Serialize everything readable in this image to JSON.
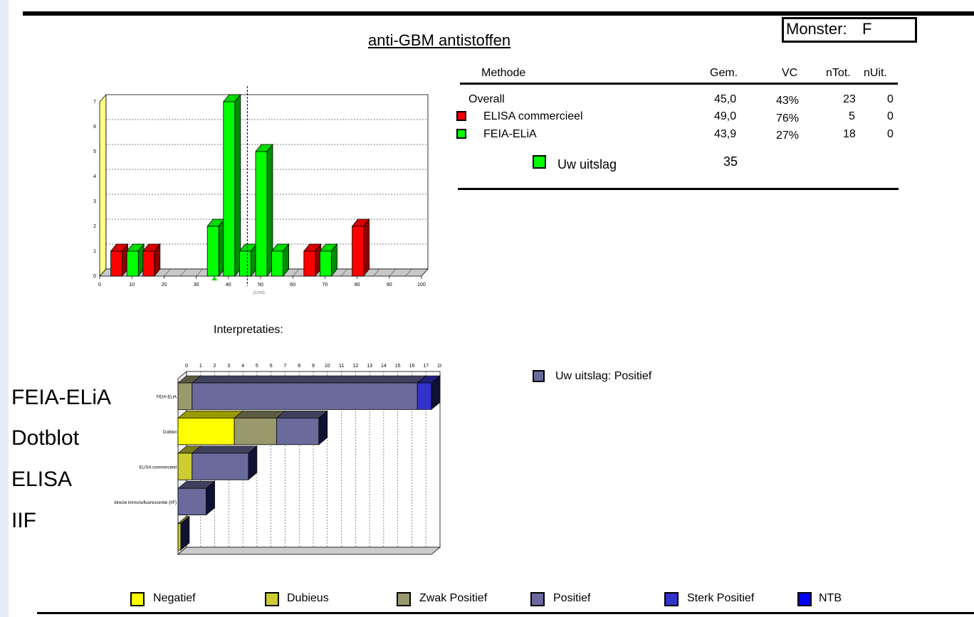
{
  "header": {
    "title": "anti-GBM antistoffen",
    "monster_label": "Monster:",
    "monster_value": "F"
  },
  "stats_table": {
    "columns": [
      "Methode",
      "Gem.",
      "VC",
      "nTot.",
      "nUit."
    ],
    "rows": [
      {
        "name": "Overall",
        "gem": "45,0",
        "vc": "43%",
        "ntot": "23",
        "nuit": "0",
        "color": ""
      },
      {
        "name": "ELISA commercieel",
        "gem": "49,0",
        "vc": "76%",
        "ntot": "5",
        "nuit": "0",
        "color": "#ff0000"
      },
      {
        "name": "FEIA-ELiA",
        "gem": "43,9",
        "vc": "27%",
        "ntot": "18",
        "nuit": "0",
        "color": "#00ff00"
      }
    ],
    "result_label": "Uw uitslag",
    "result_value": "35",
    "result_color": "#00ff00"
  },
  "interpretation": {
    "title": "Interpretaties:",
    "result_label": "Uw uitslag:  Positief",
    "result_color": "#6a6a9c"
  },
  "side_labels": [
    "FEIA-ELiA",
    "Dotblot",
    "ELISA",
    "IIF"
  ],
  "legend": [
    {
      "label": "Negatief",
      "color": "#ffff00"
    },
    {
      "label": "Dubieus",
      "color": "#cccc33"
    },
    {
      "label": "Zwak Positief",
      "color": "#99996e"
    },
    {
      "label": "Positief",
      "color": "#6a6a9c"
    },
    {
      "label": "Sterk Positief",
      "color": "#3333cc"
    },
    {
      "label": "NTB",
      "color": "#0000ff"
    }
  ],
  "chart_data": [
    {
      "type": "bar",
      "xlabel": "(U/ml)",
      "ylabel": "",
      "xlim": [
        0,
        100
      ],
      "ylim": [
        0,
        7
      ],
      "x_ticks": [
        "0",
        "10",
        "20",
        "30",
        "40",
        "50",
        "60",
        "70",
        "80",
        "90",
        "100"
      ],
      "y_ticks": [
        "0",
        "1",
        "2",
        "3",
        "4",
        "5",
        "6",
        "7"
      ],
      "grid": true,
      "series": [
        {
          "name": "ELISA commercieel",
          "color": "#ff0000",
          "points": [
            {
              "x": 5,
              "y": 1
            },
            {
              "x": 15,
              "y": 1
            },
            {
              "x": 65,
              "y": 1
            },
            {
              "x": 80,
              "y": 2
            }
          ]
        },
        {
          "name": "FEIA-ELiA",
          "color": "#00ff00",
          "points": [
            {
              "x": 10,
              "y": 1
            },
            {
              "x": 35,
              "y": 2
            },
            {
              "x": 40,
              "y": 7
            },
            {
              "x": 45,
              "y": 1
            },
            {
              "x": 50,
              "y": 5
            },
            {
              "x": 55,
              "y": 1
            },
            {
              "x": 70,
              "y": 1
            }
          ]
        }
      ],
      "result_marker_x": 35,
      "mean_line_x": 45
    },
    {
      "type": "bar",
      "orientation": "horizontal",
      "stacked": true,
      "categories": [
        "FEIA-ELiA",
        "Dotblot",
        "ELISA commercieel",
        "directe immunofluorescentie (IIF)",
        ""
      ],
      "x_ticks": [
        "0",
        "1",
        "2",
        "3",
        "4",
        "5",
        "6",
        "7",
        "8",
        "9",
        "10",
        "11",
        "12",
        "13",
        "14",
        "15",
        "16",
        "17",
        "18"
      ],
      "xlim": [
        0,
        18
      ],
      "series": [
        {
          "name": "Negatief",
          "color": "#ffff00",
          "values": [
            0,
            4,
            0,
            0,
            0
          ]
        },
        {
          "name": "Dubieus",
          "color": "#cccc33",
          "values": [
            0,
            0,
            1,
            0,
            0.2
          ]
        },
        {
          "name": "Zwak Positief",
          "color": "#99996e",
          "values": [
            1,
            3,
            0,
            0,
            0
          ]
        },
        {
          "name": "Positief",
          "color": "#6a6a9c",
          "values": [
            16,
            3,
            4,
            2,
            0
          ]
        },
        {
          "name": "Sterk Positief",
          "color": "#3333cc",
          "values": [
            1,
            0,
            0,
            0,
            0
          ]
        }
      ]
    }
  ]
}
